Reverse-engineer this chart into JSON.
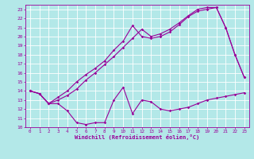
{
  "xlabel": "Windchill (Refroidissement éolien,°C)",
  "xlim": [
    -0.5,
    23.5
  ],
  "ylim": [
    10,
    23.5
  ],
  "xticks": [
    0,
    1,
    2,
    3,
    4,
    5,
    6,
    7,
    8,
    9,
    10,
    11,
    12,
    13,
    14,
    15,
    16,
    17,
    18,
    19,
    20,
    21,
    22,
    23
  ],
  "yticks": [
    10,
    11,
    12,
    13,
    14,
    15,
    16,
    17,
    18,
    19,
    20,
    21,
    22,
    23
  ],
  "bg_color": "#b3e8e8",
  "line_color": "#990099",
  "grid_color": "#ffffff",
  "line1_x": [
    0,
    1,
    2,
    3,
    4,
    5,
    6,
    7,
    8,
    9,
    10,
    11,
    12,
    13,
    14,
    15,
    16,
    17,
    18,
    19,
    20,
    21,
    22,
    23
  ],
  "line1_y": [
    14.0,
    13.7,
    12.6,
    12.6,
    11.8,
    10.5,
    10.3,
    10.5,
    10.5,
    13.0,
    14.4,
    11.5,
    13.0,
    12.8,
    12.0,
    11.8,
    12.0,
    12.2,
    12.6,
    13.0,
    13.2,
    13.4,
    13.6,
    13.8
  ],
  "line2_x": [
    0,
    1,
    2,
    3,
    4,
    5,
    6,
    7,
    8,
    9,
    10,
    11,
    12,
    13,
    14,
    15,
    16,
    17,
    18,
    19,
    20,
    21,
    22,
    23
  ],
  "line2_y": [
    14.0,
    13.7,
    12.6,
    13.3,
    14.0,
    15.0,
    15.8,
    16.5,
    17.3,
    18.5,
    19.5,
    21.2,
    20.0,
    19.8,
    20.0,
    20.5,
    21.3,
    22.2,
    22.8,
    23.0,
    23.2,
    21.0,
    18.0,
    15.5
  ],
  "line3_x": [
    0,
    1,
    2,
    3,
    4,
    5,
    6,
    7,
    8,
    9,
    10,
    11,
    12,
    13,
    14,
    15,
    16,
    17,
    18,
    19,
    20,
    21,
    22,
    23
  ],
  "line3_y": [
    14.0,
    13.7,
    12.6,
    13.0,
    13.5,
    14.2,
    15.2,
    16.0,
    16.9,
    17.8,
    18.8,
    19.8,
    20.8,
    20.0,
    20.3,
    20.8,
    21.5,
    22.3,
    23.0,
    23.2,
    23.2,
    21.0,
    18.0,
    15.5
  ]
}
